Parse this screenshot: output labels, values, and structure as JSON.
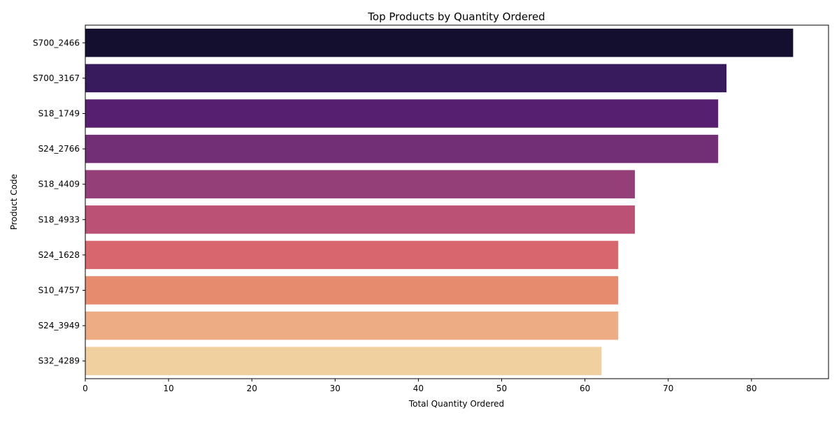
{
  "chart_data": {
    "type": "bar",
    "orientation": "horizontal",
    "title": "Top Products by Quantity Ordered",
    "xlabel": "Total Quantity Ordered",
    "ylabel": "Product Code",
    "categories": [
      "S700_2466",
      "S700_3167",
      "S18_1749",
      "S24_2766",
      "S18_4409",
      "S18_4933",
      "S24_1628",
      "S10_4757",
      "S24_3949",
      "S32_4289"
    ],
    "values": [
      85,
      77,
      76,
      76,
      66,
      66,
      64,
      64,
      64,
      62
    ],
    "colors": [
      "#140f2e",
      "#371b5d",
      "#561f6f",
      "#732f76",
      "#943f78",
      "#bb5275",
      "#d8666e",
      "#e78b6f",
      "#edac84",
      "#f1d09f"
    ],
    "xlim": [
      0,
      89.25
    ],
    "xticks": [
      0,
      10,
      20,
      30,
      40,
      50,
      60,
      70,
      80
    ],
    "grid": false,
    "legend": "none"
  }
}
